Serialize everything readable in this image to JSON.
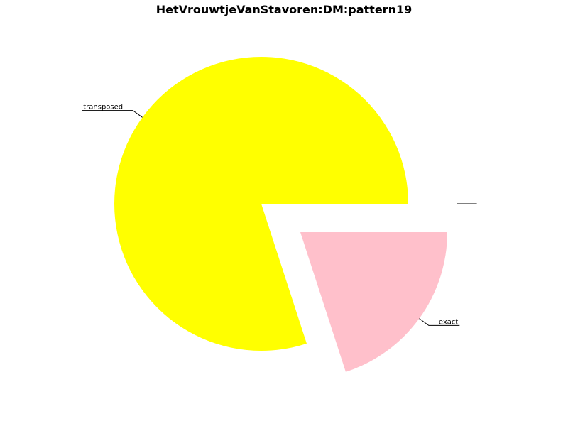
{
  "chart_data": {
    "type": "pie",
    "title": "HetVrouwtjeVanStavoren:DM:pattern19",
    "slices": [
      {
        "label": "transposed",
        "value": 80,
        "color": "#ffff00",
        "exploded": false
      },
      {
        "label": "exact",
        "value": 20,
        "color": "#ffc0cb",
        "exploded": true
      },
      {
        "label": "",
        "value": 0,
        "color": "#ffc0cb",
        "exploded": true
      },
      {
        "label": "",
        "value": 0,
        "color": "#ffc0cb",
        "exploded": true
      }
    ]
  }
}
